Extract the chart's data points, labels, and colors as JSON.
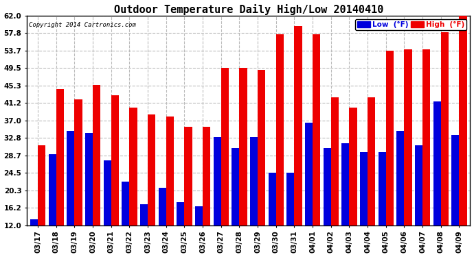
{
  "title": "Outdoor Temperature Daily High/Low 20140410",
  "copyright": "Copyright 2014 Cartronics.com",
  "dates": [
    "03/17",
    "03/18",
    "03/19",
    "03/20",
    "03/21",
    "03/22",
    "03/23",
    "03/24",
    "03/25",
    "03/26",
    "03/27",
    "03/28",
    "03/29",
    "03/30",
    "03/31",
    "04/01",
    "04/02",
    "04/03",
    "04/04",
    "04/05",
    "04/06",
    "04/07",
    "04/08",
    "04/09"
  ],
  "low": [
    13.5,
    29.0,
    34.5,
    34.0,
    27.5,
    22.5,
    17.0,
    21.0,
    17.5,
    16.5,
    33.0,
    30.5,
    33.0,
    24.5,
    24.5,
    36.5,
    30.5,
    31.5,
    29.5,
    29.5,
    34.5,
    31.0,
    41.5,
    33.5
  ],
  "high": [
    31.0,
    44.5,
    42.0,
    45.5,
    43.0,
    40.0,
    38.5,
    38.0,
    35.5,
    35.5,
    49.5,
    49.5,
    49.0,
    57.5,
    59.5,
    57.5,
    42.5,
    40.0,
    42.5,
    53.7,
    54.0,
    54.0,
    58.0,
    62.0
  ],
  "ylim": [
    12.0,
    62.0
  ],
  "yticks": [
    12.0,
    16.2,
    20.3,
    24.5,
    28.7,
    32.8,
    37.0,
    41.2,
    45.3,
    49.5,
    53.7,
    57.8,
    62.0
  ],
  "low_color": "#0000dd",
  "high_color": "#ee0000",
  "background_color": "#ffffff",
  "plot_bg_color": "#ffffff",
  "grid_color": "#bbbbbb",
  "title_fontsize": 11,
  "bar_width": 0.42,
  "legend_low_label": "Low  (°F)",
  "legend_high_label": "High  (°F)"
}
